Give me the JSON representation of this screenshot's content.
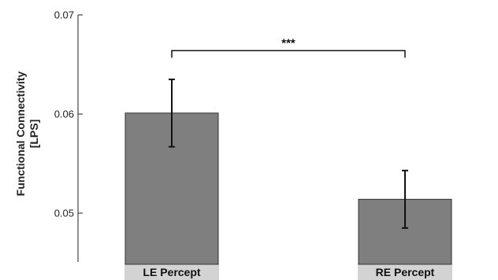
{
  "chart_data": {
    "type": "bar",
    "title": "",
    "xlabel": "",
    "ylabel": "Functional Connectivity",
    "ylabel_unit": "[LPS]",
    "categories": [
      "LE Percept",
      "RE Percept"
    ],
    "values": [
      0.0601,
      0.0514
    ],
    "error_upper": [
      0.0635,
      0.0543
    ],
    "error_lower": [
      0.0567,
      0.0485
    ],
    "ylim": [
      0.045,
      0.07
    ],
    "yticks": [
      0.05,
      0.06,
      0.07
    ],
    "ytick_labels": [
      "0.05",
      "0.06",
      "0.07"
    ],
    "significance": {
      "between": [
        0,
        1
      ],
      "label": "***",
      "level": 0.0664
    },
    "grid": false,
    "colors": {
      "bar_fill": "#7f7f7f",
      "bar_stroke": "#333333",
      "category_label_bg": "#d3d3d3",
      "axis": "#222222"
    }
  }
}
